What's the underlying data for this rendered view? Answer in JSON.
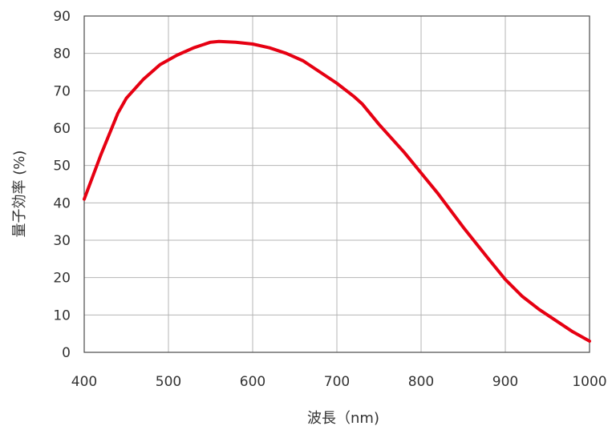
{
  "chart_data": {
    "type": "line",
    "xlabel": "波長（nm)",
    "ylabel": "量子効率 (%)",
    "xlim": [
      400,
      1000
    ],
    "ylim": [
      0,
      90
    ],
    "x_ticks": [
      "400",
      "500",
      "600",
      "700",
      "800",
      "900",
      "1000"
    ],
    "y_ticks": [
      "0",
      "10",
      "20",
      "30",
      "40",
      "50",
      "60",
      "70",
      "80",
      "90"
    ],
    "grid": true,
    "legend": "none",
    "series": [
      {
        "color": "#e60012",
        "x": [
          400,
          420,
          440,
          450,
          470,
          490,
          510,
          530,
          550,
          560,
          580,
          600,
          620,
          640,
          660,
          680,
          700,
          720,
          730,
          750,
          780,
          800,
          820,
          850,
          880,
          900,
          920,
          940,
          960,
          980,
          1000
        ],
        "y": [
          41,
          53,
          64,
          68,
          73,
          77,
          79.5,
          81.5,
          83,
          83.2,
          83,
          82.5,
          81.5,
          80,
          78,
          75,
          72,
          68.5,
          66.5,
          61,
          53.5,
          48,
          42.5,
          33.5,
          25,
          19.5,
          15,
          11.5,
          8.5,
          5.5,
          3
        ]
      }
    ]
  }
}
